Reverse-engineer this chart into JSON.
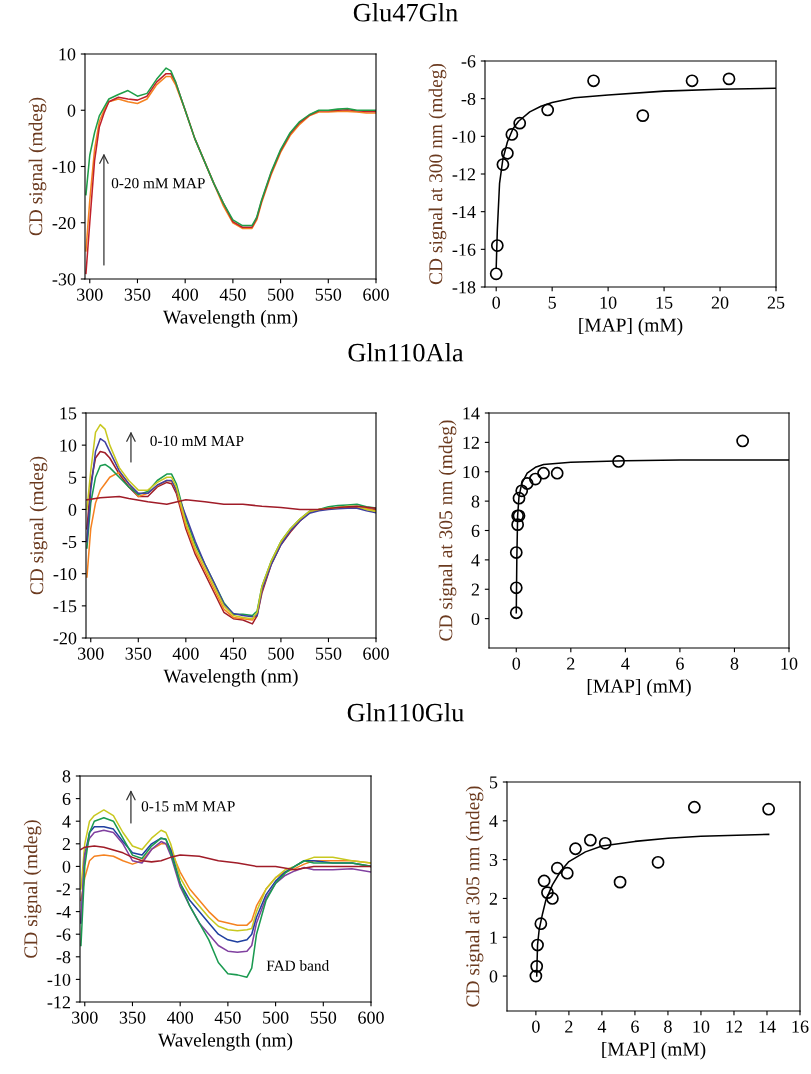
{
  "chart_data": [
    {
      "type": "line",
      "title": "Glu47Gln",
      "xlabel": "Wavelength (nm)",
      "ylabel": "CD signal (mdeg)",
      "xlim": [
        295,
        600
      ],
      "xticks": [
        300,
        350,
        400,
        450,
        500,
        550,
        600
      ],
      "ylim": [
        -30,
        10
      ],
      "yticks": [
        -30,
        -20,
        -10,
        0,
        10
      ],
      "annotations": [
        "0-20 mM MAP"
      ],
      "x": [
        296,
        300,
        305,
        310,
        315,
        320,
        330,
        340,
        350,
        360,
        370,
        380,
        385,
        390,
        400,
        410,
        420,
        430,
        440,
        450,
        460,
        470,
        475,
        480,
        490,
        500,
        510,
        520,
        530,
        540,
        550,
        560,
        570,
        580,
        590,
        600
      ],
      "series": [
        {
          "color": "#f58220",
          "values": [
            -25,
            -16,
            -7,
            -2,
            0,
            1.5,
            2,
            1.5,
            1.2,
            2,
            4.5,
            6,
            6,
            4.5,
            0,
            -5,
            -9,
            -13,
            -17,
            -20,
            -21,
            -21,
            -19.5,
            -16.5,
            -11.5,
            -7.5,
            -4.5,
            -2.5,
            -1,
            -0.3,
            -0.3,
            -0.2,
            -0.2,
            -0.3,
            -0.5,
            -0.5
          ]
        },
        {
          "color": "#c0202a",
          "values": [
            -29,
            -20,
            -9,
            -3,
            -0.5,
            1.5,
            2.3,
            2,
            1.8,
            2.5,
            5,
            6.5,
            6.5,
            5,
            0,
            -5,
            -9,
            -13,
            -16.5,
            -19.8,
            -20.8,
            -20.8,
            -19.2,
            -16.2,
            -11.2,
            -7.2,
            -4.2,
            -2.2,
            -0.9,
            -0.1,
            -0.1,
            0,
            0.1,
            -0.1,
            -0.2,
            -0.2
          ]
        },
        {
          "color": "#1f9e48",
          "values": [
            -15,
            -8,
            -4,
            -1,
            0.5,
            2,
            2.8,
            3.5,
            2.5,
            3,
            5.5,
            7.5,
            7,
            5,
            0,
            -5,
            -9,
            -13,
            -16.5,
            -19.5,
            -20.5,
            -20.5,
            -19,
            -16,
            -11,
            -7,
            -4,
            -2,
            -0.8,
            0,
            0,
            0.2,
            0.3,
            0,
            0,
            0
          ]
        }
      ]
    },
    {
      "type": "scatter",
      "xlabel": "[MAP] (mM)",
      "ylabel": "CD signal at 300 nm (mdeg)",
      "xlim": [
        -1,
        25
      ],
      "xticks": [
        0,
        5,
        10,
        15,
        20,
        25
      ],
      "ylim": [
        -18,
        -6
      ],
      "yticks": [
        -18,
        -16,
        -14,
        -12,
        -10,
        -8,
        -6
      ],
      "series": [
        {
          "type": "scatter",
          "marker": "circle",
          "color": "#000000",
          "x": [
            0,
            0.1,
            0.6,
            1.0,
            1.4,
            2.1,
            4.6,
            8.7,
            13.1,
            17.5,
            20.8
          ],
          "values": [
            -17.3,
            -15.8,
            -11.5,
            -10.9,
            -9.9,
            -9.3,
            -8.6,
            -7.05,
            -8.9,
            -7.05,
            -6.95
          ]
        },
        {
          "type": "line",
          "color": "#000000",
          "x": [
            0,
            0.1,
            0.3,
            0.6,
            1,
            1.5,
            2,
            3,
            4,
            5,
            7,
            10,
            15,
            20,
            25
          ],
          "values": [
            -17,
            -15,
            -12.5,
            -11.2,
            -10.3,
            -9.6,
            -9.2,
            -8.7,
            -8.4,
            -8.2,
            -7.95,
            -7.8,
            -7.6,
            -7.5,
            -7.45
          ]
        }
      ]
    },
    {
      "type": "line",
      "title": "Gln110Ala",
      "xlabel": "Wavelength (nm)",
      "ylabel": "CD signal (mdeg)",
      "xlim": [
        295,
        600
      ],
      "xticks": [
        300,
        350,
        400,
        450,
        500,
        550,
        600
      ],
      "ylim": [
        -20,
        15
      ],
      "yticks": [
        -20,
        -15,
        -10,
        -5,
        0,
        5,
        10,
        15
      ],
      "annotations": [
        "0-10 mM MAP"
      ],
      "x": [
        296,
        300,
        305,
        310,
        315,
        320,
        330,
        340,
        350,
        360,
        370,
        380,
        385,
        390,
        400,
        410,
        420,
        430,
        440,
        450,
        460,
        470,
        475,
        480,
        490,
        500,
        510,
        520,
        530,
        540,
        550,
        560,
        570,
        580,
        590,
        600
      ],
      "series": [
        {
          "color": "#a01c28",
          "values": [
            -3,
            4,
            8,
            9,
            8.8,
            8,
            5.5,
            3.5,
            2,
            2,
            3.5,
            4.2,
            4,
            2.5,
            -3,
            -7,
            -10,
            -13,
            -16,
            -17,
            -17.2,
            -17.8,
            -16.5,
            -13,
            -8.5,
            -5.5,
            -3.5,
            -1.8,
            -0.5,
            0,
            0.1,
            0.3,
            0.3,
            0.3,
            0.1,
            0
          ]
        },
        {
          "color": "#f58220",
          "values": [
            -10.5,
            -3,
            1,
            3,
            4,
            5,
            5.8,
            4,
            2,
            2.5,
            3.7,
            4.5,
            4.4,
            3,
            -2.5,
            -6.5,
            -9.5,
            -12.5,
            -15.5,
            -16.8,
            -17,
            -17.2,
            -16.2,
            -12.5,
            -8.2,
            -5.2,
            -3.2,
            -1.6,
            -0.4,
            0,
            0.2,
            0.3,
            0.4,
            0.4,
            0.1,
            -0.2
          ]
        },
        {
          "color": "#1a9a50",
          "values": [
            -6,
            1,
            5,
            6.8,
            7,
            6.5,
            5,
            3.5,
            2.3,
            2.8,
            4.5,
            5.5,
            5.5,
            4,
            -1.5,
            -5.5,
            -8.5,
            -11.5,
            -14.5,
            -16.3,
            -16.3,
            -16.5,
            -15.8,
            -12,
            -8,
            -5,
            -3,
            -1.5,
            -0.3,
            0,
            0.4,
            0.6,
            0.7,
            0.8,
            0.4,
            0.2
          ]
        },
        {
          "color": "#4040a0",
          "values": [
            -5,
            3,
            9,
            11,
            10.5,
            9,
            6,
            4,
            2.5,
            2.5,
            3.8,
            4.5,
            4.5,
            3,
            -1,
            -5,
            -8.5,
            -11.5,
            -14.7,
            -16.2,
            -16.5,
            -16.7,
            -16.5,
            -12.5,
            -8.5,
            -5.5,
            -3.3,
            -1.8,
            -0.6,
            -0.2,
            0,
            0.1,
            0.2,
            0.2,
            -0.2,
            -0.5
          ]
        },
        {
          "color": "#c8c820",
          "values": [
            0,
            6,
            12,
            13.2,
            12.5,
            10,
            6.5,
            4.5,
            3,
            3,
            4.2,
            5,
            5,
            3.5,
            -2,
            -6,
            -9,
            -12,
            -15,
            -16.5,
            -16.8,
            -17,
            -16,
            -12,
            -8,
            -5,
            -3,
            -1.5,
            -0.3,
            0,
            0.2,
            0.3,
            0.5,
            0.5,
            0,
            -0.3
          ]
        },
        {
          "color": "#a01c28",
          "x": [
            296,
            310,
            330,
            340,
            360,
            380,
            400,
            420,
            440,
            460,
            480,
            500,
            520,
            540,
            560,
            580,
            600
          ],
          "values": [
            1.5,
            1.8,
            2,
            1.7,
            1.2,
            0.8,
            1.5,
            1.2,
            0.8,
            0.8,
            0.5,
            0.3,
            0,
            0,
            0.3,
            0.5,
            0.2
          ]
        }
      ]
    },
    {
      "type": "scatter",
      "xlabel": "[MAP] (mM)",
      "ylabel": "CD signal at 305 nm (mdeg)",
      "xlim": [
        -1,
        10
      ],
      "xticks": [
        0,
        2,
        4,
        6,
        8,
        10
      ],
      "ylim": [
        -2,
        14
      ],
      "yticks": [
        0,
        2,
        4,
        6,
        8,
        10,
        12,
        14
      ],
      "series": [
        {
          "type": "scatter",
          "marker": "circle",
          "color": "#000000",
          "x": [
            0,
            0,
            0,
            0.05,
            0.05,
            0.1,
            0.1,
            0.2,
            0.4,
            0.7,
            1.0,
            1.5,
            3.75,
            8.3
          ],
          "values": [
            0.4,
            2.1,
            4.5,
            6.4,
            7.0,
            7.0,
            8.2,
            8.7,
            9.2,
            9.5,
            9.9,
            9.9,
            10.7,
            12.1
          ]
        },
        {
          "type": "line",
          "color": "#000000",
          "x": [
            0,
            0.02,
            0.05,
            0.1,
            0.2,
            0.4,
            0.7,
            1,
            2,
            4,
            6,
            10
          ],
          "values": [
            0.4,
            4,
            7,
            8.3,
            9.2,
            9.9,
            10.3,
            10.5,
            10.65,
            10.75,
            10.8,
            10.8
          ]
        }
      ]
    },
    {
      "type": "line",
      "title": "Gln110Glu",
      "xlabel": "Wavelength (nm)",
      "ylabel": "CD signal (mdeg)",
      "xlim": [
        295,
        600
      ],
      "xticks": [
        300,
        350,
        400,
        450,
        500,
        550,
        600
      ],
      "ylim": [
        -12,
        8
      ],
      "yticks": [
        -12,
        -10,
        -8,
        -6,
        -4,
        -2,
        0,
        2,
        4,
        6,
        8
      ],
      "annotations": [
        "0-15 mM MAP",
        "FAD band"
      ],
      "x": [
        296,
        300,
        305,
        310,
        320,
        330,
        340,
        350,
        360,
        370,
        380,
        385,
        390,
        400,
        410,
        420,
        430,
        440,
        450,
        460,
        470,
        475,
        480,
        490,
        500,
        510,
        520,
        530,
        540,
        560,
        580,
        600
      ],
      "series": [
        {
          "color": "#f58220",
          "values": [
            -3,
            -1,
            0.5,
            0.9,
            1,
            0.9,
            0.5,
            0.2,
            0.5,
            1.5,
            2,
            2,
            1.5,
            -0.5,
            -2,
            -3,
            -4,
            -4.8,
            -5,
            -5.2,
            -5.2,
            -4.8,
            -3.5,
            -2,
            -1,
            -0.5,
            -0.2,
            0.2,
            0.5,
            0.5,
            0.5,
            0.3
          ]
        },
        {
          "color": "#c8c820",
          "values": [
            -2,
            2,
            4,
            4.5,
            5,
            4.5,
            3,
            1.8,
            1.5,
            2.5,
            3.2,
            3,
            2,
            -1,
            -2.5,
            -3.5,
            -4.5,
            -5.3,
            -5.6,
            -5.7,
            -5.6,
            -5.5,
            -4,
            -2,
            -1,
            -0.3,
            0,
            0.5,
            0.8,
            0.8,
            0.5,
            0.3
          ]
        },
        {
          "color": "#2040a0",
          "values": [
            -5,
            1,
            3,
            3.5,
            3.5,
            3.3,
            2.2,
            1.2,
            1,
            2,
            2.5,
            2.4,
            1.5,
            -1.5,
            -3,
            -4,
            -5,
            -6,
            -6.5,
            -6.7,
            -6.5,
            -6,
            -4.5,
            -2.5,
            -1.3,
            -0.5,
            0,
            0.5,
            0.5,
            0.3,
            0.3,
            0
          ]
        },
        {
          "color": "#8040a0",
          "values": [
            -5,
            1,
            2.5,
            3,
            3.2,
            3,
            2,
            0.5,
            0.3,
            1.5,
            2.2,
            2,
            1,
            -1.8,
            -3.5,
            -5,
            -6,
            -7,
            -7.5,
            -7.6,
            -7.5,
            -7,
            -5,
            -2.8,
            -1.5,
            -0.8,
            -0.4,
            -0.1,
            -0.3,
            -0.3,
            -0.2,
            -0.5
          ]
        },
        {
          "color": "#1a9a50",
          "values": [
            -7,
            0,
            3,
            4,
            4.3,
            4,
            2.5,
            1,
            0.7,
            1.8,
            2.5,
            2.4,
            1.2,
            -1.5,
            -3.5,
            -5,
            -6.5,
            -8.5,
            -9.5,
            -9.6,
            -9.8,
            -9,
            -6,
            -3,
            -1.5,
            -0.6,
            0,
            0.5,
            0.3,
            0.3,
            0.3,
            0
          ]
        },
        {
          "color": "#a01c28",
          "x": [
            296,
            300,
            310,
            320,
            340,
            350,
            360,
            370,
            380,
            390,
            400,
            420,
            440,
            460,
            480,
            500,
            520,
            540,
            560,
            580,
            600
          ],
          "values": [
            1.5,
            1.7,
            1.8,
            1.7,
            1.2,
            0.8,
            0.5,
            0.4,
            0.5,
            0.8,
            1,
            0.9,
            0.5,
            0.3,
            0,
            0,
            -0.3,
            0,
            0,
            0,
            0
          ]
        }
      ]
    },
    {
      "type": "scatter",
      "xlabel": "[MAP] (mM)",
      "ylabel": "CD signal at 305 nm (mdeg)",
      "xlim": [
        -1.75,
        16
      ],
      "xticks": [
        0,
        2,
        4,
        6,
        8,
        10,
        12,
        14,
        16
      ],
      "ylim": [
        -0.9,
        5
      ],
      "yticks": [
        0,
        1,
        2,
        3,
        4,
        5
      ],
      "series": [
        {
          "type": "scatter",
          "marker": "circle",
          "color": "#000000",
          "x": [
            0,
            0.05,
            0.1,
            0.3,
            0.5,
            0.7,
            1.0,
            1.3,
            1.9,
            2.4,
            3.3,
            4.2,
            5.1,
            7.4,
            9.6,
            14.1
          ],
          "values": [
            0,
            0.25,
            0.8,
            1.35,
            2.45,
            2.15,
            2.0,
            2.78,
            2.65,
            3.28,
            3.5,
            3.42,
            2.42,
            2.93,
            4.35,
            4.3
          ]
        },
        {
          "type": "line",
          "color": "#000000",
          "x": [
            0.05,
            0.1,
            0.2,
            0.4,
            0.6,
            1,
            1.5,
            2,
            3,
            4,
            6,
            8,
            10,
            14.1
          ],
          "values": [
            0,
            0.8,
            1.2,
            1.6,
            1.95,
            2.35,
            2.7,
            2.95,
            3.2,
            3.35,
            3.47,
            3.55,
            3.6,
            3.65
          ]
        }
      ]
    }
  ]
}
